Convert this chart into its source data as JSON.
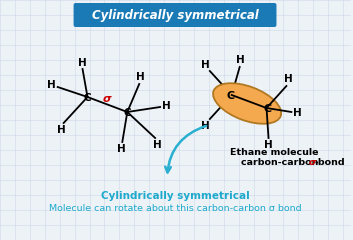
{
  "bg_color": "#edf2f7",
  "grid_color": "#cdd8e8",
  "title_text": "Cylindrically symmetrical",
  "title_bg": "#1a7ab5",
  "title_color": "white",
  "sigma_color": "#cc0000",
  "arrow_color": "#2aafd0",
  "label_color": "#1eaacc",
  "bottom_line1": "Cylindrically symmetrical",
  "bottom_line2": "Molecule can rotate about this carbon-carbon σ bond"
}
